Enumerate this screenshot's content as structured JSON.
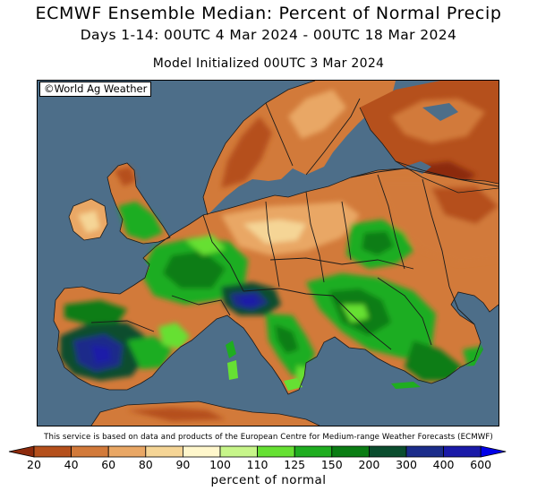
{
  "header": {
    "title": "ECMWF Ensemble Median: Percent of Normal Precip",
    "subtitle": "Days 1-14: 00UTC 4 Mar 2024 - 00UTC 18 Mar 2024",
    "init_line": "Model Initialized 00UTC 3 Mar 2024"
  },
  "map": {
    "watermark": "©World Ag Weather",
    "region": "Europe",
    "water_color": "#4d6e89",
    "border_color": "#1a1a1a"
  },
  "footer": {
    "credit": "This service is based on data and products of the European Centre for Medium-range Weather Forecasts (ECMWF)",
    "units": "percent of normal"
  },
  "legend": {
    "labels": [
      "20",
      "40",
      "60",
      "80",
      "90",
      "100",
      "110",
      "125",
      "150",
      "200",
      "300",
      "400",
      "600"
    ],
    "colors": [
      "#8c2a0c",
      "#b5501c",
      "#d27a3a",
      "#e9a765",
      "#f5d596",
      "#fff7cc",
      "#c7f58a",
      "#66e033",
      "#1fad20",
      "#0a7d14",
      "#0a4d2e",
      "#1b2c8a",
      "#1a1aa8",
      "#0000e8"
    ]
  }
}
